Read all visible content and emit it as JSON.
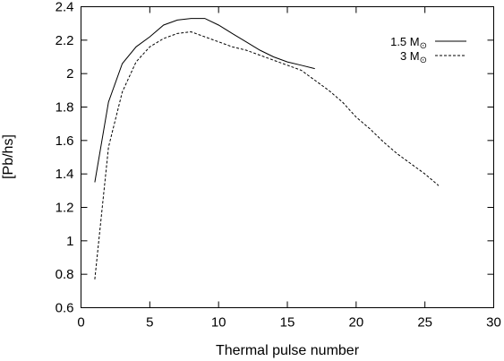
{
  "chart_data": {
    "type": "line",
    "xlabel": "Thermal pulse number",
    "ylabel": "[Pb/hs]",
    "xlim": [
      0,
      30
    ],
    "ylim": [
      0.6,
      2.4
    ],
    "x_ticks": [
      "0",
      "5",
      "10",
      "15",
      "20",
      "25",
      "30"
    ],
    "y_ticks": [
      "0.6",
      "0.8",
      "1",
      "1.2",
      "1.4",
      "1.6",
      "1.8",
      "2",
      "2.2",
      "2.4"
    ],
    "grid": false,
    "legend_position": "top-right",
    "series": [
      {
        "name": "1.5 M",
        "name_symbol": "⊙",
        "line_style": "solid",
        "color": "#000000",
        "x": [
          1,
          2,
          3,
          4,
          5,
          6,
          7,
          8,
          9,
          10,
          11,
          12,
          13,
          14,
          15,
          16,
          17
        ],
        "y": [
          1.35,
          1.83,
          2.06,
          2.16,
          2.22,
          2.29,
          2.32,
          2.33,
          2.33,
          2.29,
          2.24,
          2.19,
          2.14,
          2.1,
          2.07,
          2.05,
          2.03
        ]
      },
      {
        "name": "3 M",
        "name_symbol": "⊙",
        "line_style": "dashed",
        "color": "#000000",
        "x": [
          1,
          2,
          3,
          4,
          5,
          6,
          7,
          8,
          9,
          10,
          11,
          12,
          13,
          14,
          15,
          16,
          17,
          18,
          19,
          20,
          21,
          22,
          23,
          24,
          25,
          26
        ],
        "y": [
          0.77,
          1.56,
          1.89,
          2.07,
          2.16,
          2.21,
          2.24,
          2.25,
          2.22,
          2.19,
          2.16,
          2.14,
          2.11,
          2.08,
          2.05,
          2.02,
          1.96,
          1.9,
          1.83,
          1.74,
          1.67,
          1.59,
          1.52,
          1.46,
          1.4,
          1.33
        ]
      }
    ]
  }
}
